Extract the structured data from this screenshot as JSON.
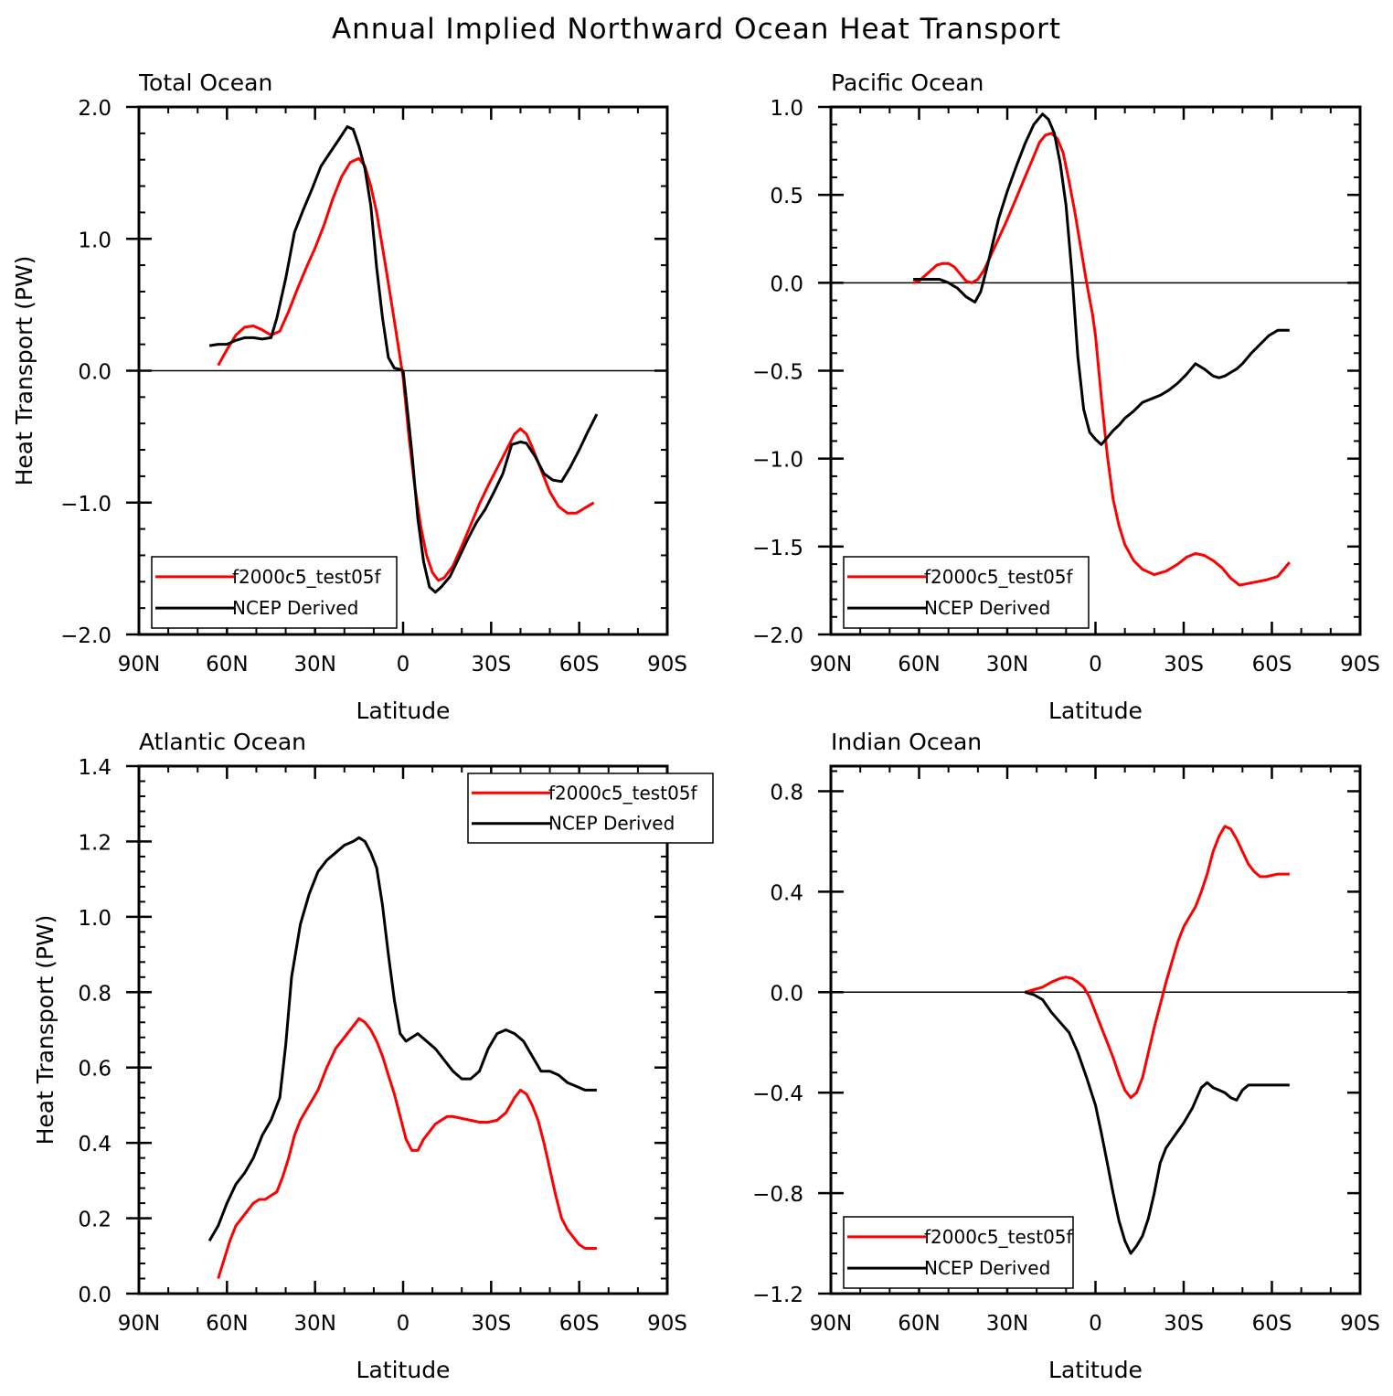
{
  "title": "Annual Implied Northward Ocean Heat Transport",
  "colors": {
    "model": "#ff0000",
    "obs": "#000000",
    "axis": "#000000",
    "background": "#ffffff"
  },
  "chart_data": [
    {
      "type": "line",
      "title": "Total Ocean",
      "xlabel": "Latitude",
      "ylabel": "Heat Transport (PW)",
      "x_direction": "north-to-south",
      "xlim": [
        90,
        -90
      ],
      "xticks": [
        90,
        60,
        30,
        0,
        -30,
        -60,
        -90
      ],
      "xtick_labels": [
        "90N",
        "60N",
        "30N",
        "0",
        "30S",
        "60S",
        "90S"
      ],
      "ylim": [
        -2.0,
        2.0
      ],
      "yticks": [
        -2.0,
        -1.0,
        0.0,
        1.0,
        2.0
      ],
      "ytick_labels": [
        "−2.0",
        "−1.0",
        "0.0",
        "1.0",
        "2.0"
      ],
      "zero_line": true,
      "legend": {
        "position": "bottom-left",
        "entries": [
          "f2000c5_test05f",
          "NCEP Derived"
        ]
      },
      "series": [
        {
          "name": "f2000c5_test05f",
          "color": "#ff0000",
          "x": [
            63,
            60,
            57,
            54,
            51,
            48,
            45,
            42,
            39,
            36,
            33,
            30,
            27,
            24,
            21,
            18,
            15,
            13,
            11,
            9,
            6,
            3,
            0,
            -2,
            -4,
            -6,
            -8,
            -10,
            -12,
            -14,
            -17,
            -20,
            -23,
            -26,
            -29,
            -32,
            -35,
            -38,
            -40,
            -42,
            -44,
            -47,
            -50,
            -53,
            -56,
            -59,
            -62,
            -65
          ],
          "y": [
            0.04,
            0.16,
            0.27,
            0.33,
            0.34,
            0.31,
            0.27,
            0.3,
            0.45,
            0.62,
            0.78,
            0.93,
            1.1,
            1.3,
            1.47,
            1.58,
            1.61,
            1.55,
            1.4,
            1.2,
            0.8,
            0.38,
            -0.05,
            -0.5,
            -0.88,
            -1.18,
            -1.4,
            -1.53,
            -1.59,
            -1.57,
            -1.48,
            -1.33,
            -1.17,
            -1.01,
            -0.87,
            -0.74,
            -0.61,
            -0.48,
            -0.44,
            -0.48,
            -0.58,
            -0.75,
            -0.92,
            -1.03,
            -1.08,
            -1.08,
            -1.04,
            -1.0
          ]
        },
        {
          "name": "NCEP Derived",
          "color": "#000000",
          "x": [
            66,
            63,
            60,
            57,
            54,
            51,
            48,
            45,
            43,
            40,
            37,
            34,
            31,
            28,
            25,
            22,
            19,
            17,
            15,
            13,
            11,
            9,
            7,
            5,
            3,
            1,
            0,
            -1,
            -3,
            -5,
            -7,
            -9,
            -11,
            -13,
            -16,
            -19,
            -22,
            -25,
            -28,
            -31,
            -34,
            -37,
            -40,
            -42,
            -45,
            -48,
            -51,
            -54,
            -57,
            -60,
            -63,
            -66
          ],
          "y": [
            0.19,
            0.2,
            0.2,
            0.23,
            0.25,
            0.25,
            0.24,
            0.25,
            0.4,
            0.7,
            1.05,
            1.22,
            1.38,
            1.55,
            1.65,
            1.75,
            1.85,
            1.83,
            1.7,
            1.53,
            1.25,
            0.78,
            0.4,
            0.1,
            0.02,
            0.01,
            0.0,
            -0.2,
            -0.62,
            -1.12,
            -1.45,
            -1.64,
            -1.68,
            -1.64,
            -1.56,
            -1.42,
            -1.28,
            -1.15,
            -1.05,
            -0.92,
            -0.78,
            -0.56,
            -0.54,
            -0.55,
            -0.65,
            -0.78,
            -0.83,
            -0.84,
            -0.73,
            -0.6,
            -0.46,
            -0.33
          ]
        }
      ]
    },
    {
      "type": "line",
      "title": "Pacific Ocean",
      "xlabel": "Latitude",
      "ylabel": "",
      "x_direction": "north-to-south",
      "xlim": [
        90,
        -90
      ],
      "xticks": [
        90,
        60,
        30,
        0,
        -30,
        -60,
        -90
      ],
      "xtick_labels": [
        "90N",
        "60N",
        "30N",
        "0",
        "30S",
        "60S",
        "90S"
      ],
      "ylim": [
        -2.0,
        1.0
      ],
      "yticks": [
        -2.0,
        -1.5,
        -1.0,
        -0.5,
        0.0,
        0.5,
        1.0
      ],
      "ytick_labels": [
        "−2.0",
        "−1.5",
        "−1.0",
        "−0.5",
        "0.0",
        "0.5",
        "1.0"
      ],
      "zero_line": true,
      "legend": {
        "position": "bottom-left",
        "entries": [
          "f2000c5_test05f",
          "NCEP Derived"
        ]
      },
      "series": [
        {
          "name": "f2000c5_test05f",
          "color": "#ff0000",
          "x": [
            62,
            60,
            58,
            56,
            54,
            52,
            50,
            48,
            46,
            44,
            42,
            40,
            38,
            36,
            33,
            30,
            27,
            24,
            21,
            19,
            17,
            15,
            13,
            11,
            9,
            7,
            5,
            3,
            1,
            0,
            -2,
            -4,
            -6,
            -8,
            -10,
            -13,
            -16,
            -20,
            -24,
            -28,
            -31,
            -34,
            -37,
            -40,
            -43,
            -46,
            -49,
            -52,
            -55,
            -58,
            -62,
            -66
          ],
          "y": [
            0.0,
            0.01,
            0.04,
            0.07,
            0.1,
            0.11,
            0.11,
            0.09,
            0.05,
            0.01,
            0.0,
            0.02,
            0.07,
            0.14,
            0.25,
            0.36,
            0.48,
            0.6,
            0.72,
            0.8,
            0.84,
            0.85,
            0.82,
            0.74,
            0.58,
            0.4,
            0.2,
            0.0,
            -0.18,
            -0.3,
            -0.65,
            -0.98,
            -1.23,
            -1.38,
            -1.49,
            -1.58,
            -1.63,
            -1.66,
            -1.64,
            -1.6,
            -1.56,
            -1.54,
            -1.55,
            -1.58,
            -1.62,
            -1.68,
            -1.72,
            -1.71,
            -1.7,
            -1.69,
            -1.67,
            -1.59
          ]
        },
        {
          "name": "NCEP Derived",
          "color": "#000000",
          "x": [
            62,
            59,
            56,
            53,
            50,
            47,
            44,
            41,
            39,
            37,
            35,
            33,
            30,
            27,
            24,
            21,
            18,
            16,
            14,
            12,
            10,
            8,
            6,
            4,
            2,
            0,
            -2,
            -4,
            -6,
            -8,
            -10,
            -13,
            -16,
            -19,
            -22,
            -25,
            -28,
            -31,
            -34,
            -37,
            -40,
            -42,
            -44,
            -46,
            -48,
            -50,
            -53,
            -56,
            -59,
            -62,
            -66
          ],
          "y": [
            0.02,
            0.02,
            0.02,
            0.02,
            0.0,
            -0.03,
            -0.08,
            -0.11,
            -0.05,
            0.08,
            0.22,
            0.36,
            0.52,
            0.66,
            0.79,
            0.9,
            0.96,
            0.93,
            0.85,
            0.68,
            0.44,
            0.05,
            -0.42,
            -0.72,
            -0.85,
            -0.89,
            -0.92,
            -0.88,
            -0.84,
            -0.81,
            -0.77,
            -0.73,
            -0.68,
            -0.66,
            -0.64,
            -0.61,
            -0.57,
            -0.52,
            -0.46,
            -0.49,
            -0.53,
            -0.54,
            -0.53,
            -0.51,
            -0.49,
            -0.46,
            -0.4,
            -0.35,
            -0.3,
            -0.27,
            -0.27
          ]
        }
      ]
    },
    {
      "type": "line",
      "title": "Atlantic Ocean",
      "xlabel": "Latitude",
      "ylabel": "Heat Transport (PW)",
      "x_direction": "north-to-south",
      "xlim": [
        90,
        -90
      ],
      "xticks": [
        90,
        60,
        30,
        0,
        -30,
        -60,
        -90
      ],
      "xtick_labels": [
        "90N",
        "60N",
        "30N",
        "0",
        "30S",
        "60S",
        "90S"
      ],
      "ylim": [
        0.0,
        1.4
      ],
      "yticks": [
        0.0,
        0.2,
        0.4,
        0.6,
        0.8,
        1.0,
        1.2,
        1.4
      ],
      "ytick_labels": [
        "0.0",
        "0.2",
        "0.4",
        "0.6",
        "0.8",
        "1.0",
        "1.2",
        "1.4"
      ],
      "zero_line": false,
      "legend": {
        "position": "top-right",
        "entries": [
          "f2000c5_test05f",
          "NCEP Derived"
        ]
      },
      "series": [
        {
          "name": "f2000c5_test05f",
          "color": "#ff0000",
          "x": [
            63,
            61,
            59,
            57,
            55,
            53,
            51,
            49,
            47,
            45,
            43,
            41,
            39,
            37,
            35,
            32,
            29,
            26,
            23,
            20,
            17,
            15,
            13,
            11,
            9,
            7,
            5,
            3,
            1,
            -1,
            -3,
            -5,
            -7,
            -9,
            -11,
            -13,
            -15,
            -17,
            -20,
            -23,
            -26,
            -29,
            -32,
            -35,
            -38,
            -40,
            -42,
            -44,
            -46,
            -48,
            -50,
            -52,
            -54,
            -56,
            -58,
            -60,
            -62,
            -64,
            -66
          ],
          "y": [
            0.04,
            0.09,
            0.14,
            0.18,
            0.2,
            0.22,
            0.24,
            0.25,
            0.25,
            0.26,
            0.27,
            0.31,
            0.36,
            0.42,
            0.46,
            0.5,
            0.54,
            0.6,
            0.65,
            0.68,
            0.71,
            0.73,
            0.72,
            0.7,
            0.67,
            0.63,
            0.58,
            0.53,
            0.47,
            0.41,
            0.38,
            0.38,
            0.41,
            0.43,
            0.45,
            0.46,
            0.47,
            0.47,
            0.465,
            0.46,
            0.455,
            0.455,
            0.46,
            0.48,
            0.52,
            0.54,
            0.53,
            0.5,
            0.46,
            0.4,
            0.33,
            0.26,
            0.2,
            0.17,
            0.15,
            0.13,
            0.12,
            0.12,
            0.12
          ]
        },
        {
          "name": "NCEP Derived",
          "color": "#000000",
          "x": [
            66,
            63,
            60,
            57,
            54,
            51,
            48,
            45,
            42,
            40,
            38,
            35,
            32,
            29,
            26,
            23,
            20,
            17,
            15,
            13,
            11,
            9,
            7,
            5,
            3,
            1,
            -1,
            -3,
            -5,
            -8,
            -11,
            -14,
            -17,
            -20,
            -23,
            -26,
            -29,
            -32,
            -35,
            -38,
            -41,
            -44,
            -47,
            -50,
            -53,
            -56,
            -59,
            -62,
            -64,
            -66
          ],
          "y": [
            0.14,
            0.18,
            0.24,
            0.29,
            0.32,
            0.36,
            0.42,
            0.46,
            0.52,
            0.66,
            0.84,
            0.98,
            1.06,
            1.12,
            1.15,
            1.17,
            1.19,
            1.2,
            1.21,
            1.2,
            1.17,
            1.13,
            1.03,
            0.9,
            0.78,
            0.69,
            0.67,
            0.68,
            0.69,
            0.67,
            0.65,
            0.62,
            0.59,
            0.57,
            0.57,
            0.59,
            0.65,
            0.69,
            0.7,
            0.69,
            0.67,
            0.63,
            0.59,
            0.59,
            0.58,
            0.56,
            0.55,
            0.54,
            0.54,
            0.54
          ]
        }
      ]
    },
    {
      "type": "line",
      "title": "Indian Ocean",
      "xlabel": "Latitude",
      "ylabel": "",
      "x_direction": "north-to-south",
      "xlim": [
        90,
        -90
      ],
      "xticks": [
        90,
        60,
        30,
        0,
        -30,
        -60,
        -90
      ],
      "xtick_labels": [
        "90N",
        "60N",
        "30N",
        "0",
        "30S",
        "60S",
        "90S"
      ],
      "ylim": [
        -1.2,
        0.9
      ],
      "yticks": [
        -1.2,
        -0.8,
        -0.4,
        0.0,
        0.4,
        0.8
      ],
      "ytick_labels": [
        "−1.2",
        "−0.8",
        "−0.4",
        "0.0",
        "0.4",
        "0.8"
      ],
      "zero_line": true,
      "legend": {
        "position": "bottom-left",
        "entries": [
          "f2000c5_test05f",
          "NCEP Derived"
        ]
      },
      "series": [
        {
          "name": "f2000c5_test05f",
          "color": "#ff0000",
          "x": [
            24,
            21,
            18,
            15,
            12,
            10,
            8,
            6,
            4,
            2,
            0,
            -2,
            -4,
            -6,
            -8,
            -10,
            -12,
            -14,
            -16,
            -18,
            -20,
            -22,
            -24,
            -26,
            -28,
            -30,
            -32,
            -34,
            -36,
            -38,
            -40,
            -42,
            -44,
            -46,
            -48,
            -50,
            -52,
            -54,
            -56,
            -58,
            -60,
            -62,
            -64,
            -66
          ],
          "y": [
            0.0,
            0.01,
            0.02,
            0.04,
            0.055,
            0.06,
            0.055,
            0.04,
            0.02,
            -0.02,
            -0.08,
            -0.14,
            -0.2,
            -0.26,
            -0.33,
            -0.39,
            -0.42,
            -0.4,
            -0.34,
            -0.24,
            -0.14,
            -0.05,
            0.04,
            0.12,
            0.2,
            0.26,
            0.3,
            0.34,
            0.4,
            0.47,
            0.56,
            0.62,
            0.66,
            0.65,
            0.61,
            0.56,
            0.51,
            0.48,
            0.46,
            0.46,
            0.465,
            0.47,
            0.47,
            0.47
          ]
        },
        {
          "name": "NCEP Derived",
          "color": "#000000",
          "x": [
            24,
            21,
            18,
            15,
            12,
            9,
            6,
            3,
            0,
            -2,
            -4,
            -6,
            -8,
            -10,
            -12,
            -14,
            -16,
            -18,
            -20,
            -22,
            -24,
            -27,
            -30,
            -33,
            -36,
            -38,
            -40,
            -42,
            -44,
            -46,
            -48,
            -50,
            -52,
            -54,
            -56,
            -58,
            -60,
            -62,
            -64,
            -66
          ],
          "y": [
            0.0,
            -0.01,
            -0.03,
            -0.08,
            -0.12,
            -0.16,
            -0.24,
            -0.34,
            -0.45,
            -0.56,
            -0.68,
            -0.8,
            -0.91,
            -0.99,
            -1.04,
            -1.01,
            -0.97,
            -0.9,
            -0.8,
            -0.68,
            -0.62,
            -0.57,
            -0.52,
            -0.46,
            -0.38,
            -0.36,
            -0.38,
            -0.39,
            -0.4,
            -0.42,
            -0.43,
            -0.39,
            -0.37,
            -0.37,
            -0.37,
            -0.37,
            -0.37,
            -0.37,
            -0.37,
            -0.37
          ]
        }
      ]
    }
  ]
}
